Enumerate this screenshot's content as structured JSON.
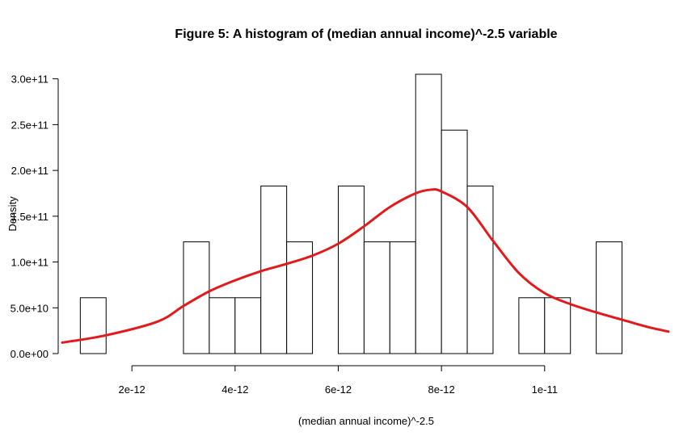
{
  "chart_data": {
    "type": "bar",
    "title": "Figure 5: A histogram of (median annual income)^-2.5 variable",
    "xlabel": "(median annual income)^-2.5",
    "ylabel": "Density",
    "xlim": [
      6.5e-13,
      1.24e-11
    ],
    "ylim": [
      0,
      305000000000.0
    ],
    "x_ticks": [
      {
        "value": 2e-12,
        "label": "2e-12"
      },
      {
        "value": 4e-12,
        "label": "4e-12"
      },
      {
        "value": 6e-12,
        "label": "6e-12"
      },
      {
        "value": 8e-12,
        "label": "8e-12"
      },
      {
        "value": 1e-11,
        "label": "1e-11"
      }
    ],
    "y_ticks": [
      {
        "value": 0,
        "label": "0.0e+00"
      },
      {
        "value": 50000000000.0,
        "label": "5.0e+10"
      },
      {
        "value": 100000000000.0,
        "label": "1.0e+11"
      },
      {
        "value": 150000000000.0,
        "label": "1.5e+11"
      },
      {
        "value": 200000000000.0,
        "label": "2.0e+11"
      },
      {
        "value": 250000000000.0,
        "label": "2.5e+11"
      },
      {
        "value": 300000000000.0,
        "label": "3.0e+11"
      }
    ],
    "bin_width": 5e-13,
    "bins": [
      {
        "start": 1e-12,
        "density": 61000000000.0
      },
      {
        "start": 1.5e-12,
        "density": 0
      },
      {
        "start": 2e-12,
        "density": 0
      },
      {
        "start": 2.5e-12,
        "density": 0
      },
      {
        "start": 3e-12,
        "density": 122000000000.0
      },
      {
        "start": 3.5e-12,
        "density": 61000000000.0
      },
      {
        "start": 4e-12,
        "density": 61000000000.0
      },
      {
        "start": 4.5e-12,
        "density": 183000000000.0
      },
      {
        "start": 5e-12,
        "density": 122000000000.0
      },
      {
        "start": 5.5e-12,
        "density": 0
      },
      {
        "start": 6e-12,
        "density": 183000000000.0
      },
      {
        "start": 6.5e-12,
        "density": 122000000000.0
      },
      {
        "start": 7e-12,
        "density": 122000000000.0
      },
      {
        "start": 7.5e-12,
        "density": 305000000000.0
      },
      {
        "start": 8e-12,
        "density": 244000000000.0
      },
      {
        "start": 8.5e-12,
        "density": 183000000000.0
      },
      {
        "start": 9e-12,
        "density": 0
      },
      {
        "start": 9.5e-12,
        "density": 61000000000.0
      },
      {
        "start": 1e-11,
        "density": 61000000000.0
      },
      {
        "start": 1.05e-11,
        "density": 0
      },
      {
        "start": 1.1e-11,
        "density": 122000000000.0
      }
    ],
    "density_curve": {
      "color": "#e31a1c",
      "x": [
        6.5e-13,
        1.5e-12,
        2.5e-12,
        3e-12,
        3.5e-12,
        4e-12,
        4.5e-12,
        5e-12,
        5.5e-12,
        6e-12,
        6.5e-12,
        7e-12,
        7.5e-12,
        7.8e-12,
        8e-12,
        8.5e-12,
        9e-12,
        9.5e-12,
        1e-11,
        1.05e-11,
        1.1e-11,
        1.15e-11,
        1.2e-11,
        1.24e-11
      ],
      "y": [
        12000000000.0,
        20000000000.0,
        35000000000.0,
        52000000000.0,
        68000000000.0,
        80000000000.0,
        90000000000.0,
        98000000000.0,
        107000000000.0,
        120000000000.0,
        139000000000.0,
        160000000000.0,
        175000000000.0,
        179000000000.0,
        177000000000.0,
        160000000000.0,
        123000000000.0,
        88000000000.0,
        66000000000.0,
        54000000000.0,
        45000000000.0,
        37000000000.0,
        29000000000.0,
        24000000000.0
      ]
    },
    "grid": false,
    "legend": "none"
  }
}
